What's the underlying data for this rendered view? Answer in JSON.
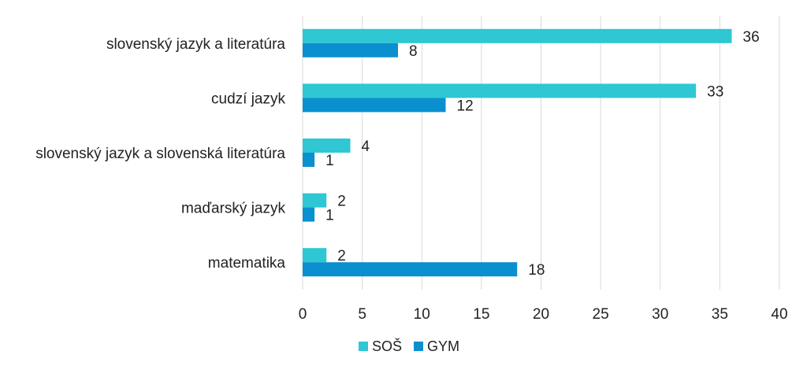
{
  "chart_data": {
    "type": "bar",
    "orientation": "horizontal",
    "categories": [
      "slovenský jazyk a literatúra",
      "cudzí jazyk",
      "slovenský jazyk a slovenská literatúra",
      "maďarský jazyk",
      "matematika"
    ],
    "series": [
      {
        "name": "SOŠ",
        "values": [
          36,
          33,
          4,
          2,
          2
        ],
        "color": "#2ec7d3"
      },
      {
        "name": "GYM",
        "values": [
          8,
          12,
          1,
          1,
          18
        ],
        "color": "#0a8fcf"
      }
    ],
    "xlim": [
      0,
      40
    ],
    "x_ticks": [
      "0",
      "5",
      "10",
      "15",
      "20",
      "25",
      "30",
      "35",
      "40"
    ],
    "grid": "vertical",
    "legend_position": "bottom",
    "data_labels": true
  }
}
